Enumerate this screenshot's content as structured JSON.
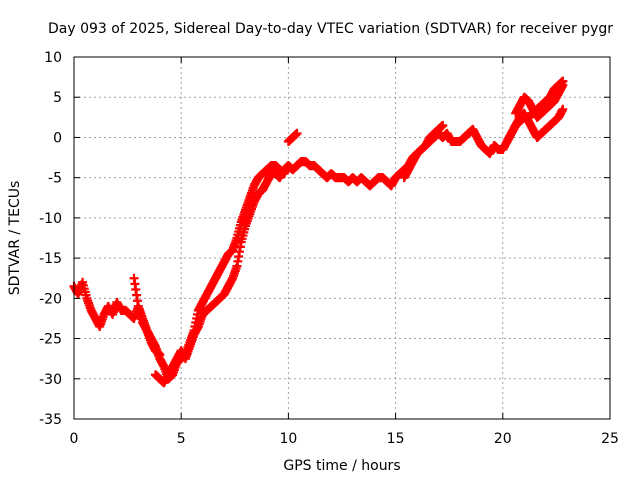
{
  "chart_data": {
    "type": "scatter",
    "title": "Day 093 of 2025, Sidereal Day-to-day VTEC variation (SDTVAR) for receiver pygr",
    "xlabel": "GPS time / hours",
    "ylabel": "SDTVAR / TECUs",
    "xlim": [
      0,
      25
    ],
    "ylim": [
      -35,
      10
    ],
    "x_ticks": [
      0,
      5,
      10,
      15,
      20,
      25
    ],
    "y_ticks": [
      -35,
      -30,
      -25,
      -20,
      -15,
      -10,
      -5,
      0,
      5,
      10
    ],
    "x_tick_labels": [
      "0",
      "5",
      "10",
      "15",
      "20",
      "25"
    ],
    "y_tick_labels": [
      "-35",
      "-30",
      "-25",
      "-20",
      "-15",
      "-10",
      "-5",
      "0",
      "5",
      "10"
    ],
    "grid": true,
    "marker": "plus",
    "color": "#ff0000",
    "series": [
      {
        "name": "",
        "x": [
          0.0,
          0.2,
          0.4,
          0.6,
          0.8,
          1.0,
          1.2,
          1.4,
          1.6,
          1.8,
          2.0,
          2.2,
          2.4,
          2.6,
          2.8,
          3.0,
          3.2,
          3.4,
          3.6,
          3.8,
          4.0,
          4.2,
          4.4,
          4.6,
          4.8,
          5.0,
          5.2,
          5.4,
          5.6,
          5.8,
          6.0,
          6.2,
          6.4,
          6.6,
          6.8,
          7.0,
          7.2,
          7.4,
          7.6,
          7.8,
          8.0,
          8.2,
          8.4,
          8.6,
          8.8,
          9.0,
          9.2,
          9.4,
          9.6,
          9.8,
          10.0,
          10.2,
          10.4,
          10.6,
          10.8,
          11.0,
          11.2,
          11.4,
          11.6,
          11.8,
          12.0,
          12.2,
          12.4,
          12.6,
          12.8,
          13.0,
          13.2,
          13.4,
          13.6,
          13.8,
          14.0,
          14.2,
          14.4,
          14.6,
          14.8,
          15.0,
          15.2,
          15.4,
          15.6,
          15.8,
          16.0,
          16.2,
          16.4,
          16.6,
          16.8,
          17.0,
          17.2,
          17.4,
          17.6,
          17.8,
          18.0,
          18.2,
          18.4,
          18.6,
          18.8,
          19.0,
          19.2,
          19.4,
          19.6,
          19.8,
          20.0,
          20.2,
          20.4,
          20.6,
          20.8,
          21.0,
          21.2,
          21.4,
          21.6,
          21.8,
          22.0,
          22.2,
          22.4,
          22.6,
          22.8
        ],
        "y": [
          -18.5,
          -19.5,
          -18.0,
          -20.0,
          -21.5,
          -22.5,
          -23.5,
          -22.0,
          -21.0,
          -22.0,
          -20.5,
          -21.5,
          -21.5,
          -22.0,
          -22.5,
          -21.0,
          -22.5,
          -24.0,
          -25.0,
          -26.0,
          -27.5,
          -28.5,
          -30.0,
          -29.5,
          -28.0,
          -27.5,
          -27.0,
          -25.5,
          -24.0,
          -21.5,
          -20.5,
          -19.5,
          -18.5,
          -17.5,
          -16.5,
          -15.5,
          -14.5,
          -14.0,
          -12.5,
          -10.5,
          -9.0,
          -7.5,
          -6.0,
          -5.0,
          -4.5,
          -4.0,
          -3.5,
          -3.5,
          -4.0,
          -4.5,
          -3.5,
          -4.0,
          -3.5,
          -3.0,
          -3.0,
          -3.5,
          -3.5,
          -4.0,
          -4.5,
          -5.0,
          -4.5,
          -5.0,
          -5.0,
          -5.0,
          -5.5,
          -5.0,
          -5.5,
          -5.0,
          -5.5,
          -6.0,
          -5.5,
          -5.0,
          -5.0,
          -5.5,
          -6.0,
          -5.0,
          -4.5,
          -4.0,
          -3.5,
          -2.5,
          -2.0,
          -1.5,
          -1.0,
          -0.5,
          0.0,
          0.5,
          0.0,
          0.5,
          -0.5,
          -0.5,
          -0.5,
          0.0,
          0.5,
          1.0,
          0.0,
          -1.0,
          -1.5,
          -2.0,
          -1.0,
          -1.5,
          -1.5,
          -0.5,
          0.5,
          1.5,
          2.0,
          2.5,
          2.5,
          3.0,
          3.5,
          4.0,
          4.5,
          5.0,
          6.0,
          6.5,
          7.0
        ]
      },
      {
        "name": "",
        "x": [
          3.8,
          4.0,
          4.2,
          4.4,
          4.6,
          4.8,
          5.0,
          5.2,
          5.4,
          5.6,
          5.8,
          6.0,
          6.2,
          6.4,
          6.6,
          6.8,
          7.0,
          7.2,
          7.4,
          7.6,
          7.8,
          8.0,
          8.2,
          8.4,
          8.6,
          8.8,
          9.0,
          9.2,
          9.4,
          9.6,
          9.8,
          10.0
        ],
        "y": [
          -29.5,
          -30.0,
          -30.5,
          -29.5,
          -28.5,
          -27.5,
          -26.5,
          -27.5,
          -26.0,
          -24.5,
          -23.5,
          -22.0,
          -21.5,
          -21.0,
          -20.5,
          -20.0,
          -19.5,
          -18.5,
          -17.5,
          -16.0,
          -13.0,
          -11.0,
          -9.5,
          -8.0,
          -7.0,
          -6.5,
          -5.5,
          -4.5,
          -4.5,
          -5.0,
          -4.0,
          -3.5
        ]
      },
      {
        "name": "",
        "x": [
          2.8,
          3.0,
          3.2,
          3.4,
          3.6,
          3.8,
          4.0
        ],
        "y": [
          -17.5,
          -21.0,
          -23.0,
          -24.0,
          -25.5,
          -26.5,
          -27.0
        ]
      },
      {
        "name": "",
        "x": [
          10.0,
          10.2,
          10.4
        ],
        "y": [
          -0.5,
          0.0,
          0.5
        ]
      },
      {
        "name": "",
        "x": [
          15.4,
          15.6,
          15.8,
          16.0,
          16.2,
          16.4,
          16.6,
          16.8,
          17.0,
          17.2
        ],
        "y": [
          -5.0,
          -4.0,
          -3.0,
          -2.0,
          -1.5,
          -1.0,
          0.0,
          0.5,
          1.0,
          1.5
        ]
      },
      {
        "name": "",
        "x": [
          20.2,
          20.4,
          20.6,
          20.8,
          21.0,
          21.2,
          21.4,
          21.6,
          21.8,
          22.0,
          22.2,
          22.4,
          22.6,
          22.8
        ],
        "y": [
          -0.5,
          0.5,
          1.5,
          2.5,
          3.0,
          2.0,
          1.0,
          0.0,
          0.5,
          1.0,
          1.5,
          2.0,
          2.5,
          3.5
        ]
      },
      {
        "name": "",
        "x": [
          20.6,
          20.8,
          21.0,
          21.2,
          21.4,
          21.6,
          21.8,
          22.0,
          22.2,
          22.4,
          22.6,
          22.8
        ],
        "y": [
          3.0,
          4.0,
          5.0,
          4.5,
          3.5,
          2.5,
          3.0,
          3.5,
          4.0,
          4.5,
          5.5,
          6.5
        ]
      }
    ]
  }
}
